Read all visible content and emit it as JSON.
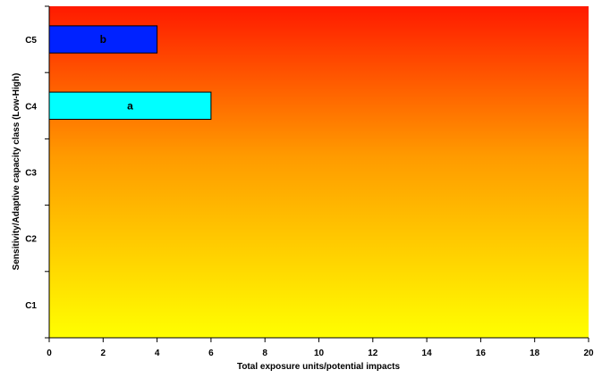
{
  "chart_data": {
    "type": "bar",
    "orientation": "horizontal",
    "title": "",
    "xlabel": "Total exposure units/potential impacts",
    "ylabel": "Sensitivity/Adaptive capacity class (Low-High)",
    "xlim": [
      0,
      20
    ],
    "xticks": [
      0,
      2,
      4,
      6,
      8,
      10,
      12,
      14,
      16,
      18,
      20
    ],
    "categories": [
      "C1",
      "C2",
      "C3",
      "C4",
      "C5"
    ],
    "bars": [
      {
        "category": "C4",
        "value": 6,
        "label": "a",
        "color": "#00ffff"
      },
      {
        "category": "C5",
        "value": 4,
        "label": "b",
        "color": "#0022ff"
      }
    ],
    "background_gradient": {
      "top": "#ff1a00",
      "bottom": "#ffff00"
    },
    "grid": false,
    "legend": "none"
  }
}
